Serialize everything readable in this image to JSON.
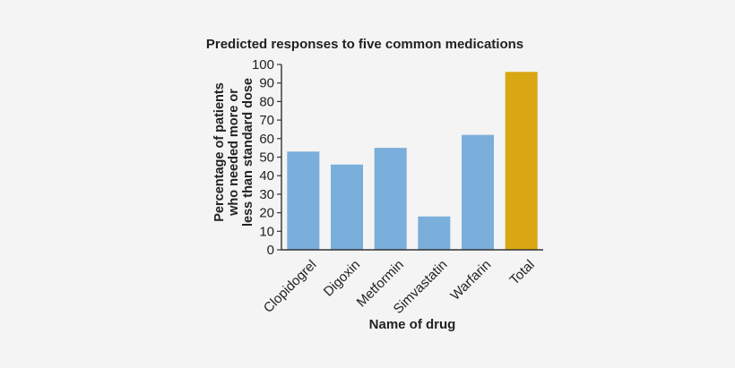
{
  "chart_data": {
    "type": "bar",
    "title": "Predicted responses to five common medications",
    "ylabel_lines": [
      "Percentage of patients",
      "who needed more or",
      "less than standard dose"
    ],
    "xlabel": "Name of drug",
    "categories": [
      "Clopidogrel",
      "Digoxin",
      "Metformin",
      "Simvastatin",
      "Warfarin",
      "Total"
    ],
    "values": [
      53,
      46,
      55,
      18,
      62,
      96
    ],
    "bar_colors": [
      "#7aaedb",
      "#7aaedb",
      "#7aaedb",
      "#7aaedb",
      "#7aaedb",
      "#d9a714"
    ],
    "ylim": [
      0,
      100
    ],
    "yticks": [
      0,
      10,
      20,
      30,
      40,
      50,
      60,
      70,
      80,
      90,
      100
    ],
    "grid": false,
    "legend": "none"
  }
}
